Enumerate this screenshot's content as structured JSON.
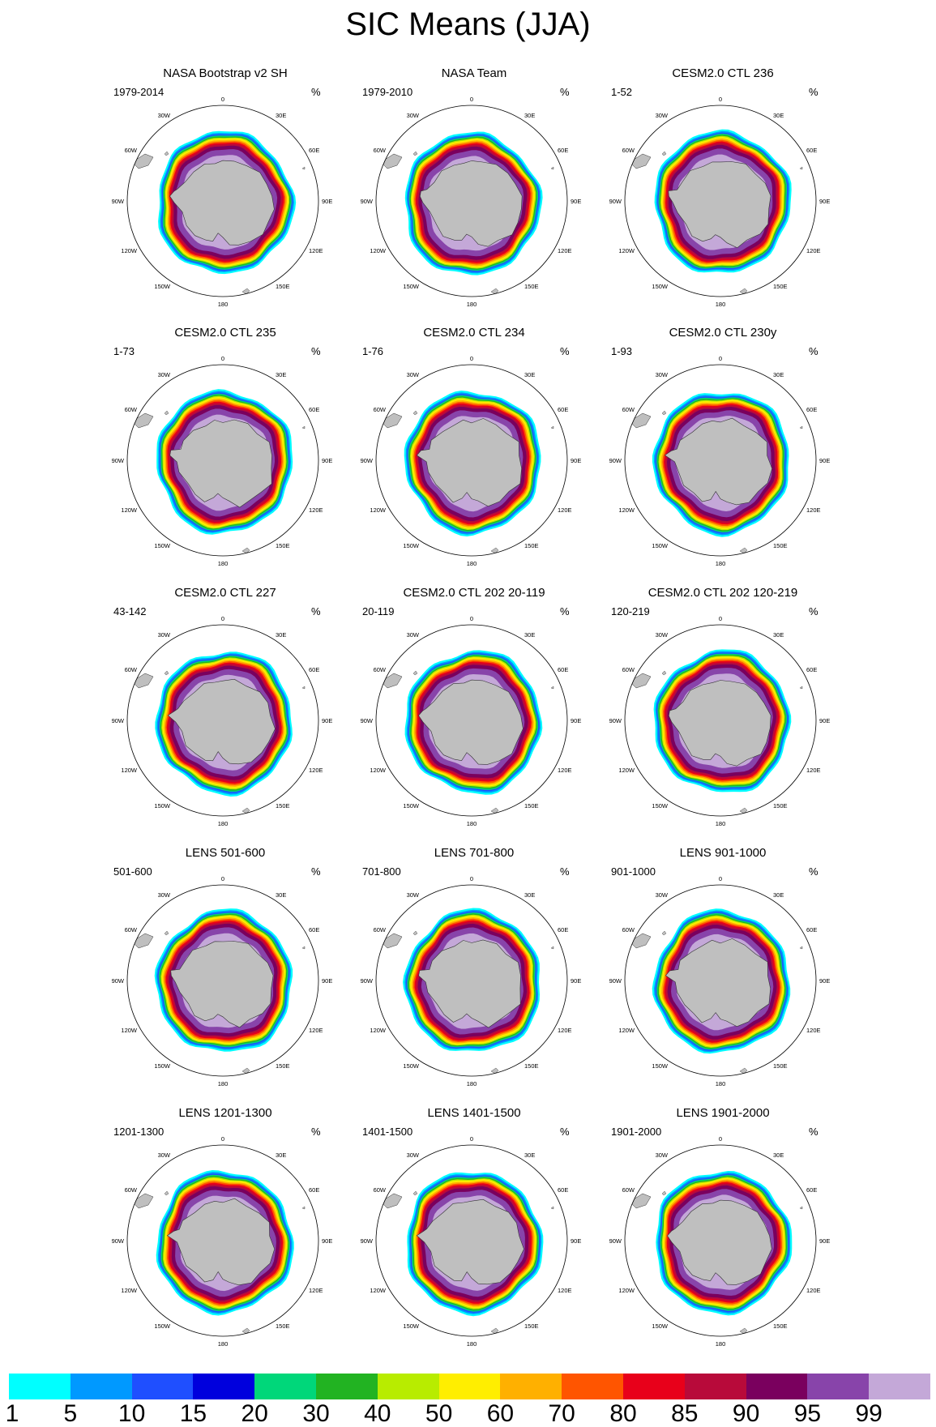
{
  "figure": {
    "title": "SIC Means (JJA)",
    "units": "%"
  },
  "map_labels": {
    "top": "0",
    "bottom": "180",
    "left": [
      "30W",
      "60W",
      "90W",
      "120W",
      "150W"
    ],
    "right": [
      "30E",
      "60E",
      "90E",
      "120E",
      "150E"
    ]
  },
  "panels": [
    {
      "title": "NASA Bootstrap v2 SH",
      "years": "1979-2014",
      "units": "%"
    },
    {
      "title": "NASA Team",
      "years": "1979-2010",
      "units": "%"
    },
    {
      "title": "CESM2.0 CTL 236",
      "years": "1-52",
      "units": "%"
    },
    {
      "title": "CESM2.0 CTL 235",
      "years": "1-73",
      "units": "%"
    },
    {
      "title": "CESM2.0 CTL 234",
      "years": "1-76",
      "units": "%"
    },
    {
      "title": "CESM2.0 CTL 230y",
      "years": "1-93",
      "units": "%"
    },
    {
      "title": "CESM2.0 CTL 227",
      "years": "43-142",
      "units": "%"
    },
    {
      "title": "CESM2.0 CTL 202 20-119",
      "years": "20-119",
      "units": "%"
    },
    {
      "title": "CESM2.0 CTL 202 120-219",
      "years": "120-219",
      "units": "%"
    },
    {
      "title": "LENS 501-600",
      "years": "501-600",
      "units": "%"
    },
    {
      "title": "LENS 701-800",
      "years": "701-800",
      "units": "%"
    },
    {
      "title": "LENS 901-1000",
      "years": "901-1000",
      "units": "%"
    },
    {
      "title": "LENS 1201-1300",
      "years": "1201-1300",
      "units": "%"
    },
    {
      "title": "LENS 1401-1500",
      "years": "1401-1500",
      "units": "%"
    },
    {
      "title": "LENS 1901-2000",
      "years": "1901-2000",
      "units": "%"
    }
  ],
  "colorbar": {
    "labels": [
      "1",
      "5",
      "10",
      "15",
      "20",
      "30",
      "40",
      "50",
      "60",
      "70",
      "80",
      "85",
      "90",
      "95",
      "99"
    ],
    "colors": [
      "#00ffff",
      "#0099ff",
      "#1f4fff",
      "#0000dd",
      "#00d77a",
      "#22b322",
      "#b8ec00",
      "#ffee00",
      "#ffb000",
      "#ff5500",
      "#e8001a",
      "#b80a3a",
      "#7a005e",
      "#8844aa",
      "#c4a8d8"
    ]
  },
  "colors": {
    "land": "#bfbfbf",
    "ocean": "#ffffff",
    "outline": "#000000"
  }
}
